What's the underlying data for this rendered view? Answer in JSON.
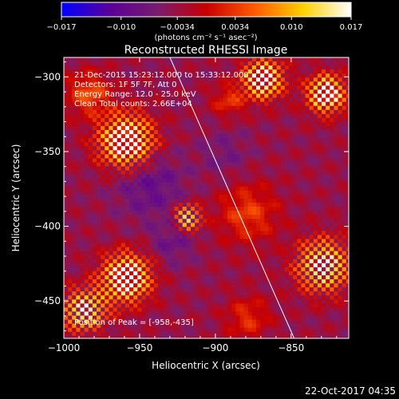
{
  "chart_data": {
    "type": "heatmap",
    "title": "Reconstructed RHESSI Image",
    "xlabel": "Heliocentric X (arcsec)",
    "ylabel": "Heliocentric Y (arcsec)",
    "xlim": [
      -1000,
      -812
    ],
    "ylim": [
      -475,
      -287
    ],
    "x_ticks": [
      -1000,
      -950,
      -900,
      -850
    ],
    "y_ticks": [
      -300,
      -350,
      -400,
      -450
    ],
    "x_tick_labels": [
      "−1000",
      "−950",
      "−900",
      "−850"
    ],
    "y_tick_labels": [
      "−300",
      "−350",
      "−400",
      "−450"
    ],
    "colorbar": {
      "range": [
        -0.017,
        0.017
      ],
      "ticks": [
        -0.017,
        -0.01,
        -0.0034,
        0.0034,
        0.01,
        0.017
      ],
      "tick_labels": [
        "−0.017",
        "−0.010",
        "−0.0034",
        "0.0034",
        "0.010",
        "0.017"
      ],
      "unit_label": "(photons cm⁻² s⁻¹ asec⁻²)",
      "colors": [
        "#0000ff",
        "#5a0098",
        "#7a1c6e",
        "#c80000",
        "#ff5a00",
        "#ffd000",
        "#ffffff"
      ]
    },
    "annotations": [
      "21-Dec-2015 15:23:12.000 to 15:33:12.000",
      "Detectors: 1F 5F 7F, Att 0",
      "Energy Range: 12.0 - 25.0 keV",
      "Clean     Total counts: 2.66E+04"
    ],
    "peak_label": "Position of Peak = [-958,-435]",
    "peak": [
      -958,
      -435
    ],
    "limb_line": [
      [
        -930,
        -287
      ],
      [
        -848,
        -475
      ]
    ],
    "emission_sources": [
      {
        "x": -960,
        "y": -342,
        "r": 20,
        "value": 0.016
      },
      {
        "x": -870,
        "y": -300,
        "r": 15,
        "value": 0.014
      },
      {
        "x": -828,
        "y": -310,
        "r": 14,
        "value": 0.015
      },
      {
        "x": -893,
        "y": -315,
        "r": 12,
        "value": 0.006
      },
      {
        "x": -985,
        "y": -310,
        "r": 16,
        "value": 0.008
      },
      {
        "x": -880,
        "y": -390,
        "r": 22,
        "value": 0.007
      },
      {
        "x": -920,
        "y": -393,
        "r": 10,
        "value": 0.009
      },
      {
        "x": -960,
        "y": -433,
        "r": 18,
        "value": 0.015
      },
      {
        "x": -830,
        "y": -425,
        "r": 20,
        "value": 0.011
      },
      {
        "x": -988,
        "y": -455,
        "r": 16,
        "value": 0.01
      },
      {
        "x": -880,
        "y": -460,
        "r": 16,
        "value": 0.006
      },
      {
        "x": -945,
        "y": -370,
        "r": 25,
        "value": -0.0055
      },
      {
        "x": -930,
        "y": -410,
        "r": 16,
        "value": -0.004
      },
      {
        "x": -895,
        "y": -350,
        "r": 18,
        "value": -0.003
      }
    ]
  },
  "footer": {
    "timestamp": "22-Oct-2017 04:35"
  }
}
